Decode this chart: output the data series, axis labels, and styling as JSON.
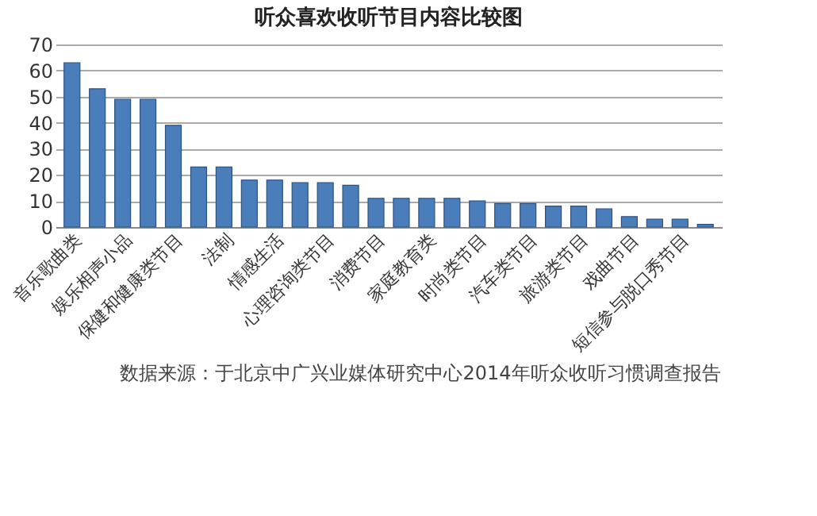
{
  "chart_data": {
    "type": "bar",
    "title": "听众喜欢收听节目内容比较图",
    "categories": [
      "音乐歌曲类",
      null,
      "娱乐相声小品",
      null,
      "保健和健康类节目",
      null,
      "法制",
      null,
      "情感生活",
      null,
      "心理咨询类节目",
      null,
      "消费节目",
      null,
      "家庭教育类",
      null,
      "时尚类节目",
      null,
      "汽车类节目",
      null,
      "旅游类节目",
      null,
      "戏曲节目",
      null,
      "短信参与脱口秀节目",
      null
    ],
    "values": [
      63,
      53,
      49,
      49,
      39,
      23,
      23,
      18,
      18,
      17,
      17,
      16,
      11,
      11,
      11,
      11,
      10,
      9,
      9,
      8,
      8,
      7,
      4,
      3,
      3,
      1
    ],
    "color": "#4a7ebb",
    "ylim": [
      0,
      70
    ],
    "yticks": [
      0,
      10,
      20,
      30,
      40,
      50,
      60,
      70
    ],
    "grid": "y",
    "annotations": [
      "数据来源：于北京中广兴业媒体研究中心2014年听众收听习惯调查报告"
    ]
  }
}
